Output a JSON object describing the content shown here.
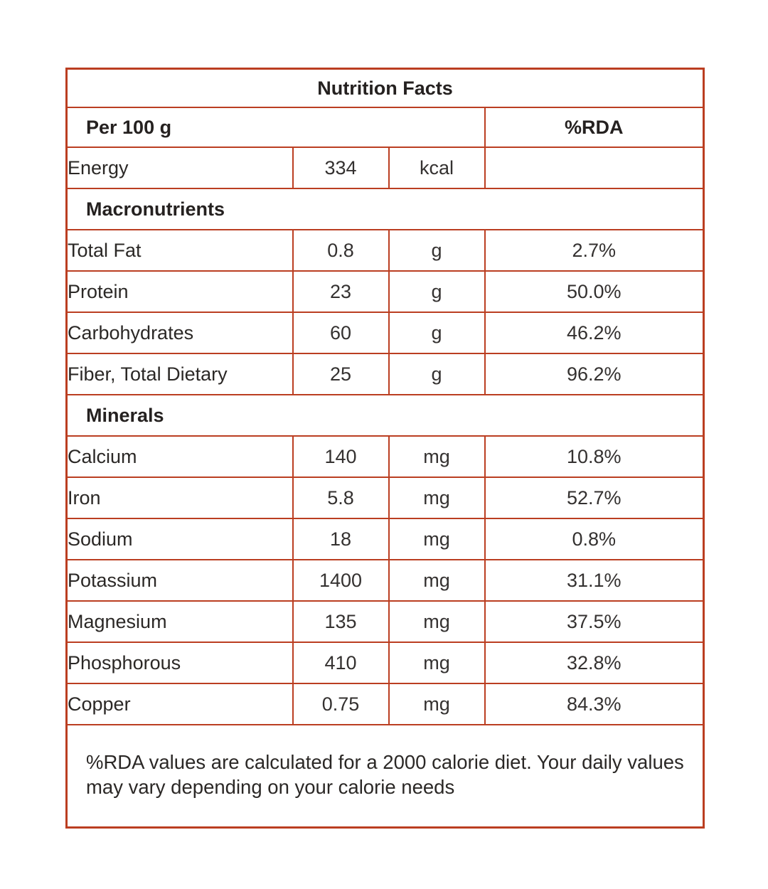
{
  "title": "Nutrition Facts",
  "columns": {
    "serving_label": "Per 100 g",
    "rda_label": "%RDA"
  },
  "energy_row": {
    "name": "Energy",
    "value": "334",
    "unit": "kcal",
    "rda": ""
  },
  "sections": [
    {
      "header": "Macronutrients",
      "rows": [
        {
          "name": "Total Fat",
          "value": "0.8",
          "unit": "g",
          "rda": "2.7%"
        },
        {
          "name": "Protein",
          "value": "23",
          "unit": "g",
          "rda": "50.0%"
        },
        {
          "name": "Carbohydrates",
          "value": "60",
          "unit": "g",
          "rda": "46.2%"
        },
        {
          "name": "Fiber, Total Dietary",
          "value": "25",
          "unit": "g",
          "rda": "96.2%"
        }
      ]
    },
    {
      "header": "Minerals",
      "rows": [
        {
          "name": "Calcium",
          "value": "140",
          "unit": "mg",
          "rda": "10.8%"
        },
        {
          "name": "Iron",
          "value": "5.8",
          "unit": "mg",
          "rda": "52.7%"
        },
        {
          "name": "Sodium",
          "value": "18",
          "unit": "mg",
          "rda": "0.8%"
        },
        {
          "name": "Potassium",
          "value": "1400",
          "unit": "mg",
          "rda": "31.1%"
        },
        {
          "name": "Magnesium",
          "value": "135",
          "unit": "mg",
          "rda": "37.5%"
        },
        {
          "name": "Phosphorous",
          "value": "410",
          "unit": "mg",
          "rda": "32.8%"
        },
        {
          "name": "Copper",
          "value": "0.75",
          "unit": "mg",
          "rda": "84.3%"
        }
      ]
    }
  ],
  "footnote": "%RDA values are calculated for a 2000 calorie diet. Your daily values may vary depending on your calorie needs",
  "colors": {
    "border": "#bb3e21",
    "text": "#2b2826"
  }
}
